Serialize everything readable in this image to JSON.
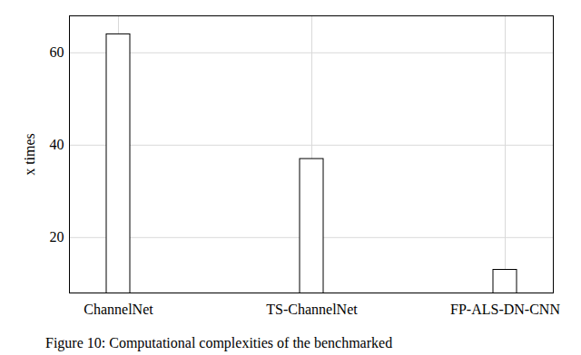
{
  "chart_data": {
    "type": "bar",
    "caption": "Figure 10: Computational complexities of the benchmarked",
    "ylabel": "x times",
    "categories": [
      "ChannelNet",
      "TS-ChannelNet",
      "FP-ALS-DN-CNN"
    ],
    "values": [
      64,
      37,
      13
    ],
    "color": "#ffffff",
    "ylim": [
      8,
      68
    ],
    "yticks": [
      20,
      40,
      60
    ],
    "grid": true
  }
}
